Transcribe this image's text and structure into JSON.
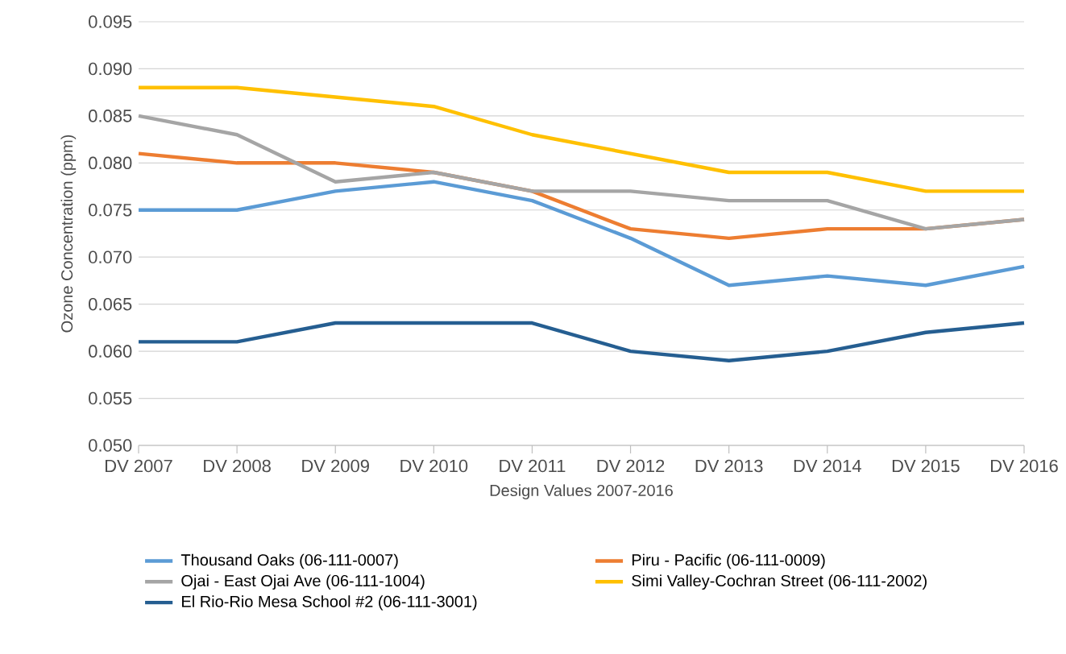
{
  "chart_data": {
    "type": "line",
    "xlabel": "Design Values 2007-2016",
    "ylabel": "Ozone Concentration (ppm)",
    "categories": [
      "DV 2007",
      "DV 2008",
      "DV 2009",
      "DV 2010",
      "DV 2011",
      "DV 2012",
      "DV 2013",
      "DV 2014",
      "DV 2015",
      "DV 2016"
    ],
    "series": [
      {
        "name": "Thousand Oaks (06-111-0007)",
        "color": "#5b9bd5",
        "values": [
          0.075,
          0.075,
          0.077,
          0.078,
          0.076,
          0.072,
          0.067,
          0.068,
          0.067,
          0.069
        ]
      },
      {
        "name": "Piru - Pacific (06-111-0009)",
        "color": "#ed7d31",
        "values": [
          0.081,
          0.08,
          0.08,
          0.079,
          0.077,
          0.073,
          0.072,
          0.073,
          0.073,
          0.074
        ]
      },
      {
        "name": "Ojai - East Ojai Ave (06-111-1004)",
        "color": "#a5a5a5",
        "values": [
          0.085,
          0.083,
          0.078,
          0.079,
          0.077,
          0.077,
          0.076,
          0.076,
          0.073,
          0.074
        ]
      },
      {
        "name": "Simi Valley-Cochran Street (06-111-2002)",
        "color": "#ffc000",
        "values": [
          0.088,
          0.088,
          0.087,
          0.086,
          0.083,
          0.081,
          0.079,
          0.079,
          0.077,
          0.077
        ]
      },
      {
        "name": "El Rio-Rio Mesa School #2 (06-111-3001)",
        "color": "#255e91",
        "values": [
          0.061,
          0.061,
          0.063,
          0.063,
          0.063,
          0.06,
          0.059,
          0.06,
          0.062,
          0.063
        ]
      }
    ],
    "ylim": [
      0.05,
      0.095
    ],
    "yticks": [
      {
        "value": 0.05,
        "label": "0.050"
      },
      {
        "value": 0.055,
        "label": "0.055"
      },
      {
        "value": 0.06,
        "label": "0.060"
      },
      {
        "value": 0.065,
        "label": "0.065"
      },
      {
        "value": 0.07,
        "label": "0.070"
      },
      {
        "value": 0.075,
        "label": "0.075"
      },
      {
        "value": 0.08,
        "label": "0.080"
      },
      {
        "value": 0.085,
        "label": "0.085"
      },
      {
        "value": 0.09,
        "label": "0.090"
      },
      {
        "value": 0.095,
        "label": "0.095"
      }
    ],
    "grid": "y",
    "legend": "bottom",
    "marker": "none",
    "line_style": "solid"
  }
}
